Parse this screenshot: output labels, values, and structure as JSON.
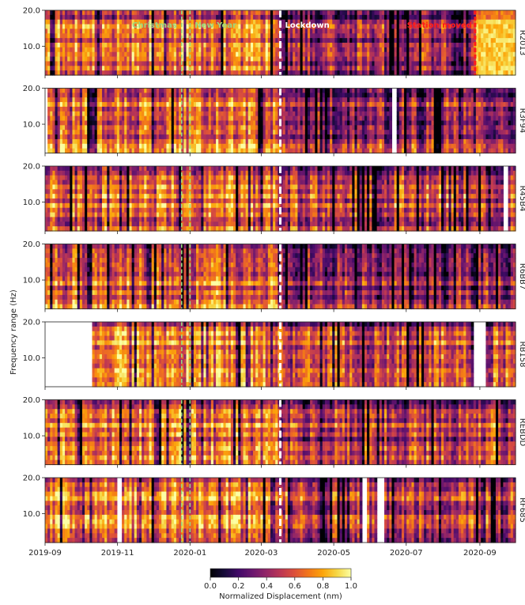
{
  "chart_data": {
    "type": "heatmap",
    "ylabel": "Frequency range (Hz)",
    "y_ticks": [
      10.0,
      20.0
    ],
    "y_tick_labels": [
      "10.0",
      "20.0"
    ],
    "ylim": [
      2.0,
      20.0
    ],
    "x_range": [
      "2019-09-01",
      "2020-10-01"
    ],
    "x_ticks": [
      "2019-09-01",
      "2019-11-01",
      "2020-01-01",
      "2020-03-01",
      "2020-05-01",
      "2020-07-01",
      "2020-09-01"
    ],
    "x_tick_labels": [
      "2019-09",
      "2019-11",
      "2020-01",
      "2020-03",
      "2020-05",
      "2020-07",
      "2020-09"
    ],
    "colorbar": {
      "label": "Normalized Displacement (nm)",
      "range": [
        0.0,
        1.0
      ],
      "ticks": [
        "0.0",
        "0.2",
        "0.4",
        "0.6",
        "0.8",
        "1.0"
      ],
      "colormap": "inferno"
    },
    "events": [
      {
        "label": "Christmas",
        "date": "2019-12-25",
        "color": "#9bd67e",
        "style": "dashed",
        "panels": "all"
      },
      {
        "label": "New Year",
        "date": "2020-01-01",
        "color": "#9bd67e",
        "style": "dashed",
        "panels": "all"
      },
      {
        "label": "Lockdown",
        "date": "2020-03-17",
        "color": "#ffffff",
        "style": "dashed",
        "panels": "all"
      },
      {
        "label": "Station moved",
        "date": "2020-08-28",
        "color": "#ff1a1a",
        "style": "dashed",
        "panels": "first"
      }
    ],
    "stations": [
      {
        "name": "R2013",
        "data_start": "2019-09-01",
        "data_end": "2020-10-01",
        "gaps": [],
        "pre_lockdown_level": 0.62,
        "post_lockdown_level": 0.38
      },
      {
        "name": "R3F94",
        "data_start": "2019-09-05",
        "data_end": "2020-10-01",
        "gaps": [
          [
            "2020-06-19",
            "2020-06-21"
          ]
        ],
        "pre_lockdown_level": 0.68,
        "post_lockdown_level": 0.42
      },
      {
        "name": "R45B4",
        "data_start": "2019-09-01",
        "data_end": "2020-10-01",
        "gaps": [
          [
            "2020-09-22",
            "2020-09-24"
          ]
        ],
        "pre_lockdown_level": 0.66,
        "post_lockdown_level": 0.55
      },
      {
        "name": "R6BB7",
        "data_start": "2019-09-01",
        "data_end": "2020-10-01",
        "gaps": [],
        "pre_lockdown_level": 0.64,
        "post_lockdown_level": 0.4
      },
      {
        "name": "RB158",
        "data_start": "2019-10-12",
        "data_end": "2020-10-01",
        "gaps": [
          [
            "2020-08-27",
            "2020-09-05"
          ]
        ],
        "pre_lockdown_level": 0.7,
        "post_lockdown_level": 0.55
      },
      {
        "name": "REBDD",
        "data_start": "2019-09-01",
        "data_end": "2020-10-01",
        "gaps": [],
        "pre_lockdown_level": 0.66,
        "post_lockdown_level": 0.5
      },
      {
        "name": "RF685",
        "data_start": "2019-09-01",
        "data_end": "2020-10-01",
        "gaps": [
          [
            "2019-11-01",
            "2019-11-04"
          ],
          [
            "2020-05-25",
            "2020-05-27"
          ],
          [
            "2020-06-08",
            "2020-06-12"
          ]
        ],
        "pre_lockdown_level": 0.7,
        "post_lockdown_level": 0.5
      }
    ]
  }
}
